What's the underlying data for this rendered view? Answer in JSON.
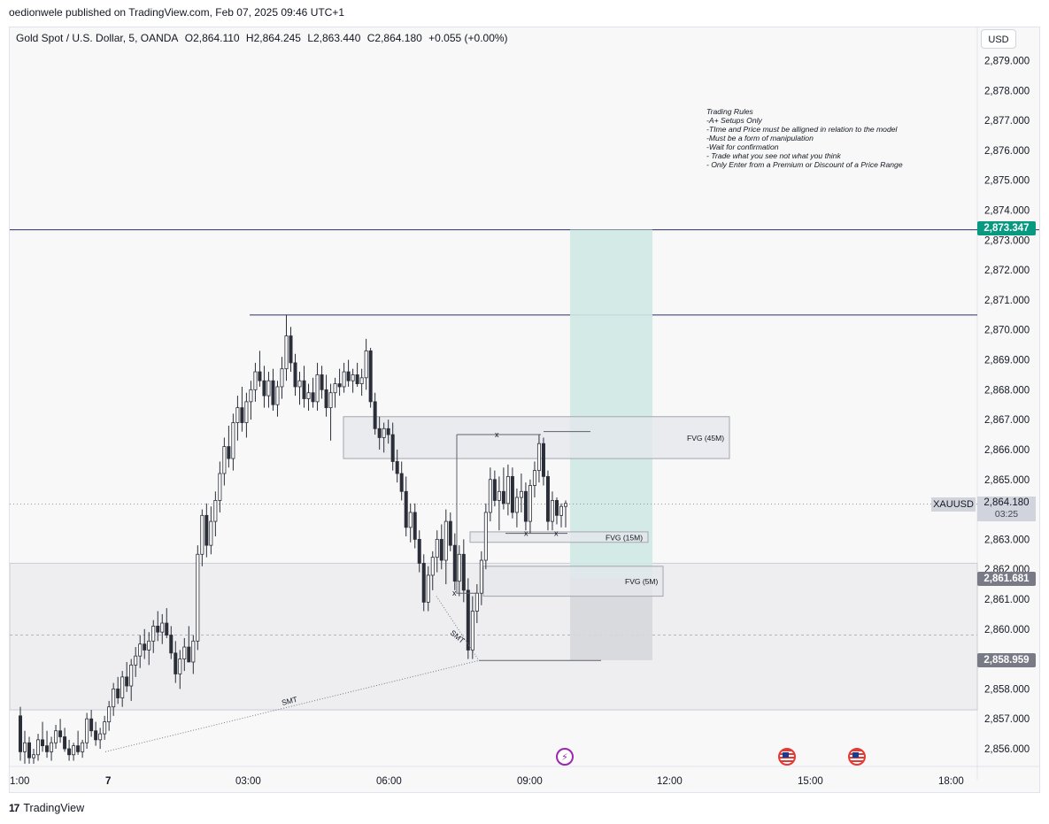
{
  "header": {
    "published_text": "oedionwele published on TradingView.com, Feb 07, 2025 09:46 UTC+1"
  },
  "legend": {
    "symbol_title": "Gold Spot / U.S. Dollar, 5, OANDA",
    "open": "O2,864.110",
    "high": "H2,864.245",
    "low": "L2,863.440",
    "close": "C2,864.180",
    "change": "+0.055 (+0.00%)"
  },
  "currency_button": "USD",
  "footer": {
    "logo_mark": "17",
    "logo_text": "TradingView"
  },
  "trading_rules": [
    "Trading Rules",
    "-A+ Setups Only",
    "-TIme and Price must be alligned in relation to the model",
    "-Must be a form of manipulation",
    "-Wait for confirmation",
    "- Trade what you see not what you think",
    "- Only Enter from a Premium or Discount of a Price Range"
  ],
  "price_labels": {
    "target": {
      "text": "2,873.347",
      "color": "#089981"
    },
    "entry": {
      "text": "2,861.681",
      "color": "#787b86"
    },
    "stop": {
      "text": "2,858.959",
      "color": "#787b86"
    },
    "symbol_tag": "XAUUSD",
    "current": "2,864.180",
    "countdown": "03:25"
  },
  "annotations": {
    "fvg_45m": "FVG (45M)",
    "fvg_15m": "FVG (15M)",
    "fvg_5m": "FVG (5M)",
    "smt_1": "SMT",
    "smt_2": "SMT",
    "x_mark": "x"
  },
  "colors": {
    "up_candle": "#ffffff",
    "down_candle": "#2a2e39",
    "wick": "#2a2e39",
    "target_zone": "#cfe8e3",
    "stop_zone": "#d6d7db",
    "horizontal_line": "#2b2f6e",
    "range_zone": "#eeeef0"
  },
  "chart_data": {
    "type": "candlestick",
    "title": "Gold Spot / U.S. Dollar, 5, OANDA",
    "y_axis": {
      "ticks": [
        "2,879.000",
        "2,878.000",
        "2,877.000",
        "2,876.000",
        "2,875.000",
        "2,874.000",
        "2,873.000",
        "2,872.000",
        "2,871.000",
        "2,870.000",
        "2,869.000",
        "2,868.000",
        "2,867.000",
        "2,866.000",
        "2,865.000",
        "2,864.000",
        "2,863.000",
        "2,862.000",
        "2,861.000",
        "2,860.000",
        "2,858.000",
        "2,857.000",
        "2,856.000"
      ],
      "range": [
        2855.5,
        2879.9
      ]
    },
    "x_axis": {
      "ticks": [
        "1:00",
        "7",
        "03:00",
        "06:00",
        "09:00",
        "12:00",
        "15:00",
        "18:00"
      ]
    },
    "levels": {
      "target_line": 2873.347,
      "swing_high_line": 2870.5,
      "range_top": 2862.2,
      "range_mid": 2859.8,
      "range_bottom": 2857.3
    },
    "position": {
      "entry": 2861.681,
      "target": 2873.347,
      "stop": 2858.959
    },
    "candles": [
      [
        2857.1,
        2857.4,
        2855.6,
        2855.9
      ],
      [
        2855.9,
        2856.6,
        2855.5,
        2856.2
      ],
      [
        2856.2,
        2856.4,
        2855.5,
        2855.7
      ],
      [
        2855.7,
        2856.0,
        2855.5,
        2855.8
      ],
      [
        2855.8,
        2856.5,
        2855.6,
        2856.3
      ],
      [
        2856.3,
        2856.9,
        2855.9,
        2856.1
      ],
      [
        2856.1,
        2856.6,
        2855.7,
        2855.9
      ],
      [
        2855.9,
        2856.4,
        2855.6,
        2856.2
      ],
      [
        2856.2,
        2856.8,
        2856.0,
        2856.6
      ],
      [
        2856.6,
        2857.0,
        2856.2,
        2856.4
      ],
      [
        2856.4,
        2856.7,
        2855.9,
        2856.0
      ],
      [
        2856.0,
        2856.3,
        2855.6,
        2855.8
      ],
      [
        2855.8,
        2856.2,
        2855.6,
        2856.1
      ],
      [
        2856.1,
        2856.6,
        2855.8,
        2855.9
      ],
      [
        2855.9,
        2856.3,
        2855.7,
        2856.2
      ],
      [
        2856.2,
        2857.2,
        2856.0,
        2857.0
      ],
      [
        2857.0,
        2857.3,
        2856.4,
        2856.6
      ],
      [
        2856.6,
        2856.9,
        2856.1,
        2856.3
      ],
      [
        2856.3,
        2856.7,
        2856.0,
        2856.5
      ],
      [
        2856.5,
        2857.1,
        2856.3,
        2856.9
      ],
      [
        2856.9,
        2857.6,
        2856.6,
        2857.4
      ],
      [
        2857.4,
        2858.2,
        2857.1,
        2858.0
      ],
      [
        2858.0,
        2858.4,
        2857.5,
        2857.7
      ],
      [
        2857.7,
        2858.6,
        2857.4,
        2858.4
      ],
      [
        2858.4,
        2858.9,
        2857.9,
        2858.1
      ],
      [
        2858.1,
        2859.0,
        2857.6,
        2858.8
      ],
      [
        2858.8,
        2859.4,
        2858.4,
        2859.1
      ],
      [
        2859.1,
        2859.8,
        2858.7,
        2859.5
      ],
      [
        2859.5,
        2860.0,
        2859.0,
        2859.3
      ],
      [
        2859.3,
        2859.9,
        2858.8,
        2859.6
      ],
      [
        2859.6,
        2860.3,
        2859.2,
        2860.1
      ],
      [
        2860.1,
        2860.6,
        2859.6,
        2859.9
      ],
      [
        2859.9,
        2860.5,
        2859.5,
        2860.2
      ],
      [
        2860.2,
        2860.7,
        2859.7,
        2859.8
      ],
      [
        2859.8,
        2860.1,
        2859.0,
        2859.2
      ],
      [
        2859.2,
        2859.6,
        2858.2,
        2858.5
      ],
      [
        2858.5,
        2859.3,
        2858.0,
        2859.0
      ],
      [
        2859.0,
        2859.7,
        2858.6,
        2859.4
      ],
      [
        2859.4,
        2860.1,
        2859.0,
        2858.9
      ],
      [
        2858.9,
        2859.8,
        2858.5,
        2859.6
      ],
      [
        2859.6,
        2862.8,
        2859.3,
        2862.5
      ],
      [
        2862.5,
        2864.0,
        2862.1,
        2863.8
      ],
      [
        2863.8,
        2864.2,
        2862.4,
        2862.8
      ],
      [
        2862.8,
        2864.1,
        2862.5,
        2863.6
      ],
      [
        2863.6,
        2864.6,
        2863.1,
        2864.3
      ],
      [
        2864.3,
        2865.6,
        2863.9,
        2865.2
      ],
      [
        2865.2,
        2866.4,
        2864.8,
        2866.1
      ],
      [
        2866.1,
        2866.8,
        2865.4,
        2865.7
      ],
      [
        2865.7,
        2867.2,
        2865.3,
        2866.9
      ],
      [
        2866.9,
        2867.8,
        2866.3,
        2867.4
      ],
      [
        2867.4,
        2868.1,
        2866.6,
        2866.9
      ],
      [
        2866.9,
        2867.9,
        2866.4,
        2867.6
      ],
      [
        2867.6,
        2868.3,
        2867.0,
        2868.0
      ],
      [
        2868.0,
        2868.9,
        2867.6,
        2868.6
      ],
      [
        2868.6,
        2869.3,
        2868.1,
        2868.3
      ],
      [
        2868.3,
        2868.8,
        2867.4,
        2867.8
      ],
      [
        2867.8,
        2868.6,
        2867.4,
        2868.3
      ],
      [
        2868.3,
        2868.7,
        2867.3,
        2867.5
      ],
      [
        2867.5,
        2868.3,
        2867.1,
        2868.1
      ],
      [
        2868.1,
        2869.1,
        2867.7,
        2868.7
      ],
      [
        2868.7,
        2870.5,
        2868.3,
        2869.8
      ],
      [
        2869.8,
        2870.1,
        2868.6,
        2868.9
      ],
      [
        2868.9,
        2869.2,
        2867.8,
        2868.1
      ],
      [
        2868.1,
        2868.6,
        2867.5,
        2868.3
      ],
      [
        2868.3,
        2868.8,
        2867.4,
        2867.7
      ],
      [
        2867.7,
        2868.2,
        2867.3,
        2867.9
      ],
      [
        2867.9,
        2868.4,
        2867.4,
        2867.6
      ],
      [
        2867.6,
        2868.9,
        2867.3,
        2868.5
      ],
      [
        2868.5,
        2868.8,
        2867.7,
        2868.0
      ],
      [
        2868.0,
        2868.5,
        2867.1,
        2867.4
      ],
      [
        2867.4,
        2868.2,
        2866.3,
        2867.9
      ],
      [
        2867.9,
        2868.4,
        2867.4,
        2868.2
      ],
      [
        2868.2,
        2868.7,
        2867.8,
        2868.1
      ],
      [
        2868.1,
        2868.9,
        2867.9,
        2868.6
      ],
      [
        2868.6,
        2869.0,
        2868.1,
        2868.3
      ],
      [
        2868.3,
        2868.7,
        2867.9,
        2868.5
      ],
      [
        2868.5,
        2868.9,
        2868.1,
        2868.2
      ],
      [
        2868.2,
        2868.7,
        2867.8,
        2868.4
      ],
      [
        2868.4,
        2869.7,
        2868.0,
        2869.3
      ],
      [
        2869.3,
        2869.4,
        2867.4,
        2867.6
      ],
      [
        2867.6,
        2867.9,
        2866.5,
        2866.7
      ],
      [
        2866.7,
        2867.1,
        2866.0,
        2866.4
      ],
      [
        2866.4,
        2866.9,
        2865.9,
        2866.7
      ],
      [
        2866.7,
        2867.0,
        2866.2,
        2866.5
      ],
      [
        2866.5,
        2866.9,
        2865.3,
        2865.6
      ],
      [
        2865.6,
        2866.0,
        2864.9,
        2865.2
      ],
      [
        2865.2,
        2865.6,
        2864.3,
        2864.6
      ],
      [
        2864.6,
        2865.1,
        2863.1,
        2863.4
      ],
      [
        2863.4,
        2864.2,
        2862.9,
        2863.9
      ],
      [
        2863.9,
        2864.2,
        2862.7,
        2863.0
      ],
      [
        2863.0,
        2863.3,
        2861.9,
        2862.2
      ],
      [
        2862.2,
        2862.5,
        2860.6,
        2860.9
      ],
      [
        2860.9,
        2862.1,
        2860.6,
        2861.8
      ],
      [
        2861.8,
        2862.6,
        2861.3,
        2862.4
      ],
      [
        2862.4,
        2863.3,
        2861.9,
        2863.0
      ],
      [
        2863.0,
        2863.5,
        2862.0,
        2862.3
      ],
      [
        2862.3,
        2864.0,
        2861.5,
        2863.6
      ],
      [
        2863.6,
        2863.9,
        2862.6,
        2862.8
      ],
      [
        2862.8,
        2863.2,
        2861.3,
        2861.6
      ],
      [
        2861.6,
        2862.8,
        2861.1,
        2862.5
      ],
      [
        2862.5,
        2863.0,
        2860.9,
        2861.3
      ],
      [
        2861.3,
        2861.7,
        2859.0,
        2859.3
      ],
      [
        2859.3,
        2861.1,
        2859.0,
        2860.6
      ],
      [
        2860.6,
        2861.5,
        2860.2,
        2861.2
      ],
      [
        2861.2,
        2862.6,
        2860.8,
        2862.3
      ],
      [
        2862.3,
        2864.2,
        2862.0,
        2863.9
      ],
      [
        2863.9,
        2865.4,
        2863.6,
        2865.0
      ],
      [
        2865.0,
        2865.3,
        2864.1,
        2864.3
      ],
      [
        2864.3,
        2865.1,
        2863.3,
        2864.6
      ],
      [
        2864.6,
        2865.4,
        2864.0,
        2864.2
      ],
      [
        2864.2,
        2865.5,
        2863.8,
        2865.1
      ],
      [
        2865.1,
        2865.4,
        2863.7,
        2863.9
      ],
      [
        2863.9,
        2864.7,
        2863.4,
        2864.4
      ],
      [
        2864.4,
        2865.2,
        2863.9,
        2864.6
      ],
      [
        2864.6,
        2864.9,
        2863.3,
        2863.6
      ],
      [
        2863.6,
        2865.0,
        2863.2,
        2864.8
      ],
      [
        2864.8,
        2865.6,
        2864.4,
        2865.3
      ],
      [
        2865.3,
        2866.5,
        2864.9,
        2866.2
      ],
      [
        2866.2,
        2866.4,
        2864.8,
        2865.1
      ],
      [
        2865.1,
        2865.3,
        2863.3,
        2863.6
      ],
      [
        2863.6,
        2864.6,
        2863.3,
        2864.3
      ],
      [
        2864.3,
        2864.4,
        2863.5,
        2863.8
      ],
      [
        2863.8,
        2864.2,
        2863.4,
        2864.1
      ],
      [
        2864.1,
        2864.3,
        2863.4,
        2864.2
      ]
    ]
  }
}
